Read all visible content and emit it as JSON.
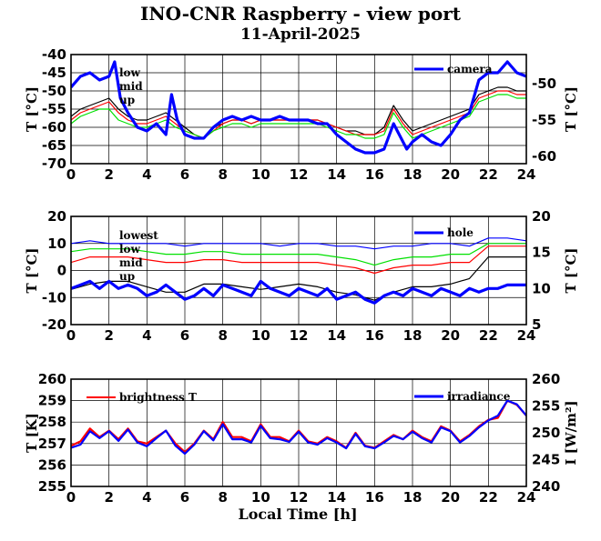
{
  "title": "INO-CNR Raspberry - view port",
  "subtitle": "11-April-2025",
  "xlabel": "Local Time [h]",
  "x_ticks": [
    "0",
    "2",
    "4",
    "6",
    "8",
    "10",
    "12",
    "14",
    "16",
    "18",
    "20",
    "22",
    "24"
  ],
  "chart_data": [
    {
      "type": "line",
      "xlim": [
        0,
        24
      ],
      "ylim_left": [
        -70,
        -40
      ],
      "yticks_left": [
        "-70",
        "-65",
        "-60",
        "-55",
        "-50",
        "-45",
        "-40"
      ],
      "ylabel_left": "T [°C]",
      "ylim_right": [
        -61,
        -46
      ],
      "yticks_right": [
        "-60",
        "-55",
        "-50"
      ],
      "ylabel_right": "T [°C]",
      "grid": true,
      "legend_left_placement": "top-left",
      "legend_right_placement": "top-right",
      "series": [
        {
          "name": "low",
          "color": "#000000",
          "axis": "left",
          "x": [
            0,
            0.5,
            1,
            1.5,
            2,
            2.5,
            3,
            3.5,
            4,
            4.5,
            5,
            5.5,
            6,
            6.5,
            7,
            7.5,
            8,
            8.5,
            9,
            9.5,
            10,
            10.5,
            11,
            11.5,
            12,
            12.5,
            13,
            13.5,
            14,
            14.5,
            15,
            15.5,
            16,
            16.5,
            17,
            17.5,
            18,
            18.5,
            19,
            19.5,
            20,
            20.5,
            21,
            21.5,
            22,
            22.5,
            23,
            23.5,
            24
          ],
          "values": [
            -57,
            -55,
            -54,
            -53,
            -52,
            -55,
            -57,
            -58,
            -58,
            -57,
            -56,
            -58,
            -60,
            -62,
            -63,
            -60,
            -59,
            -58,
            -58,
            -59,
            -58,
            -58,
            -58,
            -58,
            -58,
            -58,
            -58,
            -59,
            -60,
            -61,
            -61,
            -62,
            -62,
            -60,
            -54,
            -58,
            -61,
            -60,
            -59,
            -58,
            -57,
            -56,
            -55,
            -51,
            -50,
            -49,
            -49,
            -50,
            -50
          ]
        },
        {
          "name": "mid",
          "color": "#ff0000",
          "axis": "left",
          "x": [
            0,
            0.5,
            1,
            1.5,
            2,
            2.5,
            3,
            3.5,
            4,
            4.5,
            5,
            5.5,
            6,
            6.5,
            7,
            7.5,
            8,
            8.5,
            9,
            9.5,
            10,
            10.5,
            11,
            11.5,
            12,
            12.5,
            13,
            13.5,
            14,
            14.5,
            15,
            15.5,
            16,
            16.5,
            17,
            17.5,
            18,
            18.5,
            19,
            19.5,
            20,
            20.5,
            21,
            21.5,
            22,
            22.5,
            23,
            23.5,
            24
          ],
          "values": [
            -58,
            -56,
            -55,
            -54,
            -53,
            -56,
            -58,
            -59,
            -59,
            -58,
            -57,
            -59,
            -61,
            -62,
            -63,
            -61,
            -59,
            -58,
            -58,
            -59,
            -58,
            -58,
            -58,
            -58,
            -58,
            -58,
            -58,
            -59,
            -60,
            -61,
            -62,
            -62,
            -62,
            -61,
            -55,
            -59,
            -62,
            -61,
            -60,
            -59,
            -58,
            -57,
            -56,
            -52,
            -51,
            -50,
            -50,
            -51,
            -51
          ]
        },
        {
          "name": "up",
          "color": "#00e000",
          "axis": "left",
          "x": [
            0,
            0.5,
            1,
            1.5,
            2,
            2.5,
            3,
            3.5,
            4,
            4.5,
            5,
            5.5,
            6,
            6.5,
            7,
            7.5,
            8,
            8.5,
            9,
            9.5,
            10,
            10.5,
            11,
            11.5,
            12,
            12.5,
            13,
            13.5,
            14,
            14.5,
            15,
            15.5,
            16,
            16.5,
            17,
            17.5,
            18,
            18.5,
            19,
            19.5,
            20,
            20.5,
            21,
            21.5,
            22,
            22.5,
            23,
            23.5,
            24
          ],
          "values": [
            -59,
            -57,
            -56,
            -55,
            -55,
            -58,
            -59,
            -60,
            -60,
            -59,
            -58,
            -60,
            -61,
            -62,
            -63,
            -61,
            -60,
            -59,
            -59,
            -60,
            -59,
            -59,
            -59,
            -59,
            -59,
            -59,
            -59,
            -60,
            -61,
            -62,
            -62,
            -63,
            -63,
            -62,
            -56,
            -60,
            -63,
            -62,
            -61,
            -60,
            -59,
            -58,
            -57,
            -53,
            -52,
            -51,
            -51,
            -52,
            -52
          ]
        },
        {
          "name": "camera",
          "color": "#0000ff",
          "axis": "right",
          "x": [
            0,
            0.5,
            1,
            1.5,
            2,
            2.3,
            2.6,
            3,
            3.5,
            4,
            4.5,
            5,
            5.3,
            5.6,
            6,
            6.5,
            7,
            7.5,
            8,
            8.5,
            9,
            9.5,
            10,
            10.5,
            11,
            11.5,
            12,
            12.5,
            13,
            13.5,
            14,
            14.5,
            15,
            15.5,
            16,
            16.5,
            17,
            17.3,
            17.7,
            18,
            18.5,
            19,
            19.5,
            20,
            20.5,
            21,
            21.5,
            22,
            22.5,
            23,
            23.5,
            24
          ],
          "values": [
            -50.5,
            -49,
            -48.5,
            -49.5,
            -49,
            -47,
            -52,
            -54,
            -56,
            -56.5,
            -55.5,
            -57,
            -51.5,
            -55,
            -57,
            -57.5,
            -57.5,
            -56,
            -55,
            -54.5,
            -55,
            -54.5,
            -55,
            -55,
            -54.5,
            -55,
            -55,
            -55,
            -55.5,
            -55.5,
            -57,
            -58,
            -59,
            -59.5,
            -59.5,
            -59,
            -55.5,
            -57,
            -59,
            -58,
            -57,
            -58,
            -58.5,
            -57,
            -55,
            -54,
            -49.5,
            -48.5,
            -48.5,
            -47,
            -48.5,
            -49
          ]
        }
      ]
    },
    {
      "type": "line",
      "xlim": [
        0,
        24
      ],
      "ylim_left": [
        -20,
        20
      ],
      "yticks_left": [
        "-20",
        "-10",
        "0",
        "10",
        "20"
      ],
      "ylabel_left": "T [°C]",
      "ylim_right": [
        5,
        20
      ],
      "yticks_right": [
        "5",
        "10",
        "15",
        "20"
      ],
      "ylabel_right": "T [°C]",
      "grid": true,
      "legend_left_placement": "top-left",
      "legend_right_placement": "top-right",
      "series": [
        {
          "name": "lowest",
          "color": "#0000ff",
          "axis": "left",
          "x": [
            0,
            1,
            2,
            3,
            4,
            5,
            6,
            7,
            8,
            9,
            10,
            11,
            12,
            13,
            14,
            15,
            16,
            17,
            18,
            19,
            20,
            21,
            22,
            23,
            24
          ],
          "values": [
            10,
            11,
            10,
            10,
            10,
            10,
            9,
            10,
            10,
            10,
            10,
            9,
            10,
            10,
            9,
            9,
            8,
            9,
            9,
            10,
            10,
            9,
            12,
            12,
            11
          ]
        },
        {
          "name": "low",
          "color": "#ff0000",
          "axis": "left",
          "x": [
            0,
            1,
            2,
            3,
            4,
            5,
            6,
            7,
            8,
            9,
            10,
            11,
            12,
            13,
            14,
            15,
            16,
            17,
            18,
            19,
            20,
            21,
            22,
            23,
            24
          ],
          "values": [
            3,
            5,
            5,
            5,
            4,
            3,
            3,
            4,
            4,
            3,
            3,
            3,
            3,
            3,
            2,
            1,
            -1,
            1,
            2,
            2,
            3,
            3,
            9,
            9,
            9
          ]
        },
        {
          "name": "mid",
          "color": "#00e000",
          "axis": "left",
          "x": [
            0,
            1,
            2,
            3,
            4,
            5,
            6,
            7,
            8,
            9,
            10,
            11,
            12,
            13,
            14,
            15,
            16,
            17,
            18,
            19,
            20,
            21,
            22,
            23,
            24
          ],
          "values": [
            7,
            8,
            8,
            8,
            7,
            6,
            6,
            7,
            7,
            6,
            6,
            6,
            6,
            6,
            5,
            4,
            2,
            4,
            5,
            5,
            6,
            6,
            10,
            10,
            10
          ]
        },
        {
          "name": "up",
          "color": "#000000",
          "axis": "left",
          "x": [
            0,
            1,
            2,
            3,
            4,
            5,
            6,
            7,
            8,
            9,
            10,
            11,
            12,
            13,
            14,
            15,
            16,
            17,
            18,
            19,
            20,
            21,
            22,
            23,
            24
          ],
          "values": [
            -7,
            -5,
            -4,
            -4,
            -6,
            -8,
            -8,
            -5,
            -5,
            -6,
            -7,
            -6,
            -5,
            -6,
            -8,
            -9,
            -11,
            -8,
            -6,
            -6,
            -5,
            -3,
            5,
            5,
            5
          ]
        },
        {
          "name": "hole",
          "color": "#0000ff",
          "axis": "right",
          "x": [
            0,
            0.5,
            1,
            1.5,
            2,
            2.5,
            3,
            3.5,
            4,
            4.5,
            5,
            5.5,
            6,
            6.5,
            7,
            7.5,
            8,
            8.5,
            9,
            9.5,
            10,
            10.5,
            11,
            11.5,
            12,
            12.5,
            13,
            13.5,
            14,
            14.5,
            15,
            15.5,
            16,
            16.5,
            17,
            17.5,
            18,
            18.5,
            19,
            19.5,
            20,
            20.5,
            21,
            21.5,
            22,
            22.5,
            23,
            23.5,
            24
          ],
          "values": [
            10,
            10.5,
            11,
            10,
            11,
            10,
            10.5,
            10,
            9,
            9.5,
            10.5,
            9.5,
            8.5,
            9,
            10,
            9,
            10.5,
            10,
            9.5,
            9,
            11,
            10,
            9.5,
            9,
            10,
            9.5,
            9,
            10,
            8.5,
            9,
            9.5,
            8.5,
            8,
            9,
            9.5,
            9,
            10,
            9.5,
            9,
            10,
            9.5,
            9,
            10,
            9.5,
            10,
            10,
            10.5,
            10.5,
            10.5
          ]
        }
      ]
    },
    {
      "type": "line",
      "xlim": [
        0,
        24
      ],
      "ylim_left": [
        255,
        260
      ],
      "yticks_left": [
        "255",
        "256",
        "257",
        "258",
        "259",
        "260"
      ],
      "ylabel_left": "T [K]",
      "ylim_right": [
        240,
        260
      ],
      "yticks_right": [
        "240",
        "245",
        "250",
        "255",
        "260"
      ],
      "ylabel_right": "I [W/m²]",
      "grid": true,
      "legend_left_placement": "top-left",
      "legend_right_placement": "top-right",
      "series": [
        {
          "name": "brightness T",
          "color": "#ff0000",
          "axis": "left",
          "x": [
            0,
            0.5,
            1,
            1.5,
            2,
            2.5,
            3,
            3.5,
            4,
            4.5,
            5,
            5.5,
            6,
            6.5,
            7,
            7.5,
            8,
            8.5,
            9,
            9.5,
            10,
            10.5,
            11,
            11.5,
            12,
            12.5,
            13,
            13.5,
            14,
            14.5,
            15,
            15.5,
            16,
            16.5,
            17,
            17.5,
            18,
            18.5,
            19,
            19.5,
            20,
            20.5,
            21,
            21.5,
            22,
            22.5,
            23,
            23.5,
            24
          ],
          "values": [
            256.9,
            257.1,
            257.7,
            257.3,
            257.6,
            257.2,
            257.7,
            257.1,
            257.0,
            257.3,
            257.6,
            257.0,
            256.6,
            257.0,
            257.6,
            257.2,
            258.0,
            257.3,
            257.3,
            257.1,
            257.9,
            257.3,
            257.3,
            257.1,
            257.6,
            257.1,
            257.0,
            257.3,
            257.1,
            256.8,
            257.5,
            256.9,
            256.8,
            257.1,
            257.4,
            257.2,
            257.6,
            257.3,
            257.1,
            257.8,
            257.6,
            257.1,
            257.4,
            257.8,
            258.1,
            258.2,
            259.0,
            258.8,
            258.3
          ]
        },
        {
          "name": "irradiance",
          "color": "#0000ff",
          "axis": "right",
          "x": [
            0,
            0.5,
            1,
            1.5,
            2,
            2.5,
            3,
            3.5,
            4,
            4.5,
            5,
            5.5,
            6,
            6.5,
            7,
            7.5,
            8,
            8.5,
            9,
            9.5,
            10,
            10.5,
            11,
            11.5,
            12,
            12.5,
            13,
            13.5,
            14,
            14.5,
            15,
            15.5,
            16,
            16.5,
            17,
            17.5,
            18,
            18.5,
            19,
            19.5,
            20,
            20.5,
            21,
            21.5,
            22,
            22.5,
            23,
            23.5,
            24
          ],
          "values": [
            247.2,
            247.8,
            250.3,
            249.0,
            250.3,
            248.5,
            250.6,
            248.2,
            247.5,
            249.0,
            250.4,
            247.6,
            246.1,
            247.8,
            250.3,
            248.6,
            251.6,
            248.8,
            248.8,
            248.2,
            251.3,
            249.0,
            248.8,
            248.3,
            250.2,
            248.2,
            247.8,
            249.0,
            248.2,
            247.1,
            249.8,
            247.5,
            247.1,
            248.2,
            249.4,
            248.8,
            250.2,
            249.0,
            248.2,
            251.0,
            250.3,
            248.2,
            249.4,
            251.0,
            252.3,
            253.2,
            256.0,
            255.3,
            253.2
          ]
        }
      ]
    }
  ]
}
